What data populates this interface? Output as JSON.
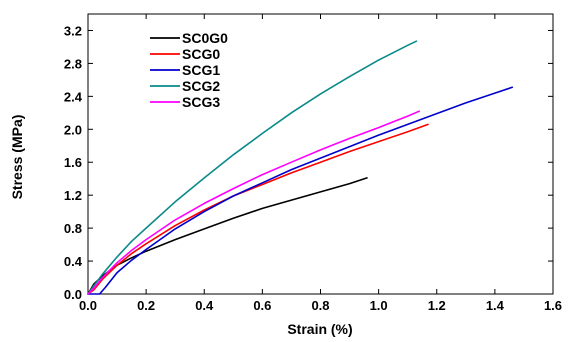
{
  "chart_data": {
    "type": "line",
    "xlabel": "Strain (%)",
    "ylabel": "Stress (MPa)",
    "xlim": [
      0.0,
      1.6
    ],
    "ylim": [
      0.0,
      3.4
    ],
    "xticks": [
      "0.0",
      "0.2",
      "0.4",
      "0.6",
      "0.8",
      "1.0",
      "1.2",
      "1.4",
      "1.6"
    ],
    "yticks": [
      "0.0",
      "0.4",
      "0.8",
      "1.2",
      "1.6",
      "2.0",
      "2.4",
      "2.8",
      "3.2"
    ],
    "grid": false,
    "legend_position": "top-left",
    "series": [
      {
        "name": "SC0G0",
        "color": "#000000",
        "x": [
          0.0,
          0.02,
          0.05,
          0.1,
          0.15,
          0.2,
          0.3,
          0.4,
          0.5,
          0.6,
          0.7,
          0.8,
          0.9,
          0.96
        ],
        "y": [
          0.0,
          0.12,
          0.22,
          0.35,
          0.44,
          0.52,
          0.66,
          0.79,
          0.92,
          1.04,
          1.14,
          1.24,
          1.34,
          1.41
        ]
      },
      {
        "name": "SCG0",
        "color": "#ff0000",
        "x": [
          0.0,
          0.02,
          0.05,
          0.1,
          0.15,
          0.2,
          0.3,
          0.4,
          0.5,
          0.6,
          0.7,
          0.8,
          0.9,
          1.0,
          1.1,
          1.17
        ],
        "y": [
          0.0,
          0.05,
          0.18,
          0.35,
          0.49,
          0.61,
          0.83,
          1.02,
          1.19,
          1.33,
          1.47,
          1.6,
          1.73,
          1.85,
          1.97,
          2.06
        ]
      },
      {
        "name": "SCG1",
        "color": "#0000cc",
        "x": [
          0.0,
          0.04,
          0.06,
          0.1,
          0.15,
          0.2,
          0.3,
          0.4,
          0.5,
          0.6,
          0.7,
          0.8,
          0.9,
          1.0,
          1.1,
          1.2,
          1.3,
          1.4,
          1.46
        ],
        "y": [
          0.0,
          0.0,
          0.08,
          0.26,
          0.41,
          0.54,
          0.79,
          1.0,
          1.19,
          1.35,
          1.51,
          1.65,
          1.79,
          1.93,
          2.06,
          2.19,
          2.32,
          2.44,
          2.51
        ]
      },
      {
        "name": "SCG2",
        "color": "#0a8a8a",
        "x": [
          0.0,
          0.02,
          0.05,
          0.1,
          0.15,
          0.2,
          0.3,
          0.4,
          0.5,
          0.6,
          0.7,
          0.8,
          0.9,
          1.0,
          1.1,
          1.13
        ],
        "y": [
          0.0,
          0.1,
          0.24,
          0.45,
          0.64,
          0.8,
          1.12,
          1.41,
          1.69,
          1.95,
          2.2,
          2.43,
          2.64,
          2.84,
          3.02,
          3.07
        ]
      },
      {
        "name": "SCG3",
        "color": "#ff00ff",
        "x": [
          0.0,
          0.02,
          0.05,
          0.1,
          0.15,
          0.2,
          0.3,
          0.4,
          0.5,
          0.6,
          0.7,
          0.8,
          0.9,
          1.0,
          1.1,
          1.14
        ],
        "y": [
          0.0,
          0.07,
          0.2,
          0.38,
          0.53,
          0.66,
          0.9,
          1.1,
          1.28,
          1.45,
          1.6,
          1.75,
          1.89,
          2.02,
          2.16,
          2.22
        ]
      }
    ]
  }
}
